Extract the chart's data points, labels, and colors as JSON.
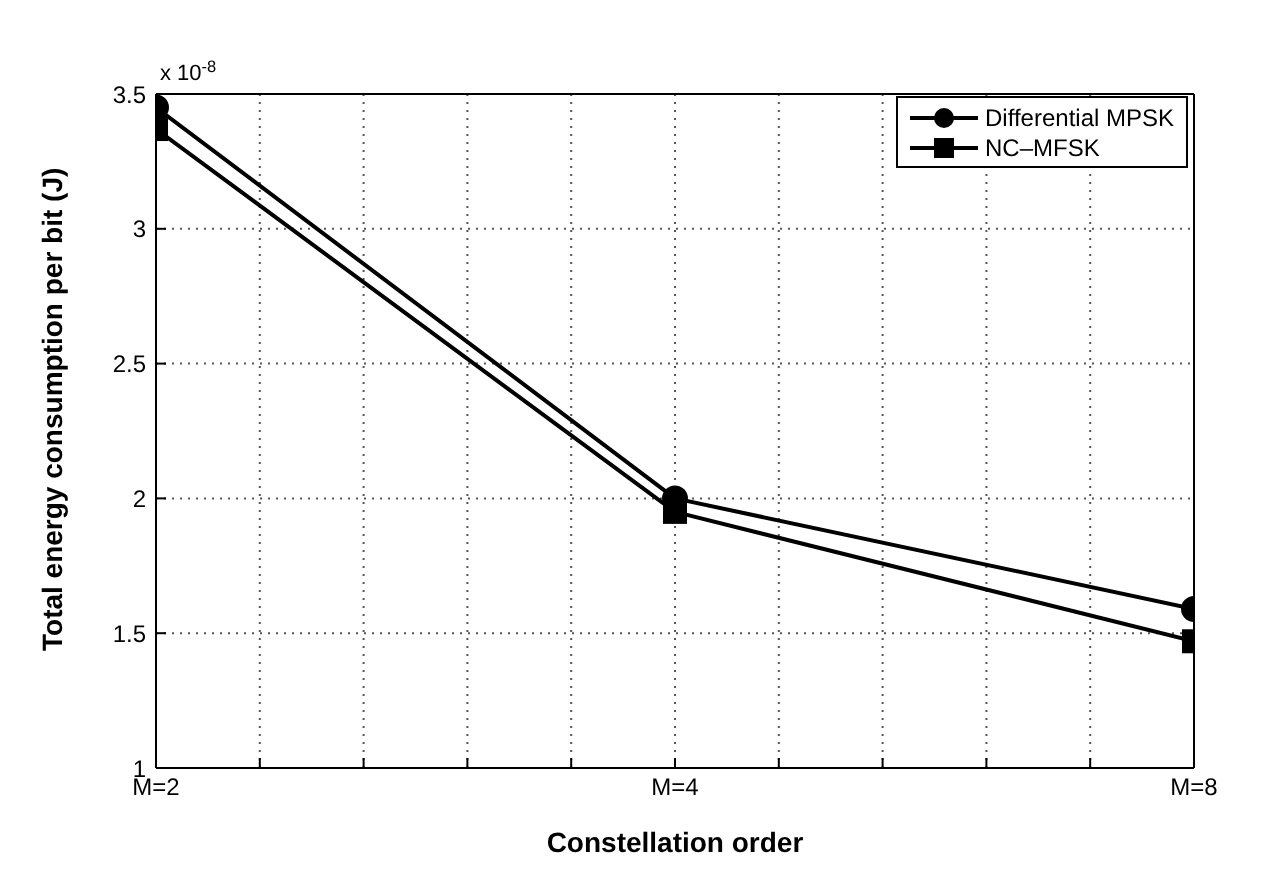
{
  "chart_data": {
    "type": "line",
    "xlabel": "Constellation order",
    "ylabel": "Total energy consumption per bit (J)",
    "annotations": [
      "x 10$^{-8}$"
    ],
    "categories": [
      "M=2",
      null,
      null,
      null,
      null,
      "M=4",
      null,
      null,
      null,
      null,
      "M=8"
    ],
    "ylim": [
      1,
      3.5
    ],
    "yticks": [
      1,
      1.5,
      2,
      2.5,
      3,
      3.5
    ],
    "grid": true,
    "legend": "top right",
    "line_style": "solid",
    "series": [
      {
        "name": "Differential MPSK",
        "color": "#000000",
        "marker": "circle",
        "values": [
          3.45,
          null,
          null,
          null,
          null,
          2.0,
          null,
          null,
          null,
          null,
          1.59
        ]
      },
      {
        "name": "NC–MFSK",
        "color": "#000000",
        "marker": "square",
        "values": [
          3.37,
          null,
          null,
          null,
          null,
          1.95,
          null,
          null,
          null,
          null,
          1.47
        ]
      }
    ]
  }
}
